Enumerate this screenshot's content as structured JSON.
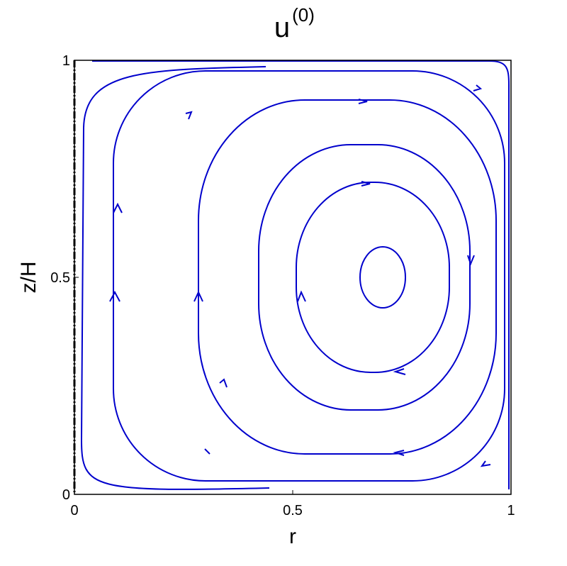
{
  "chart_data": {
    "type": "streamline",
    "title": "u",
    "title_superscript": "(0)",
    "x_label": "r",
    "y_label": "z/H",
    "xlim": [
      0,
      1
    ],
    "ylim": [
      0,
      1
    ],
    "xticks": [
      0,
      0.5,
      1
    ],
    "yticks": [
      0,
      0.5,
      1
    ],
    "color": "#0000cc"
  }
}
